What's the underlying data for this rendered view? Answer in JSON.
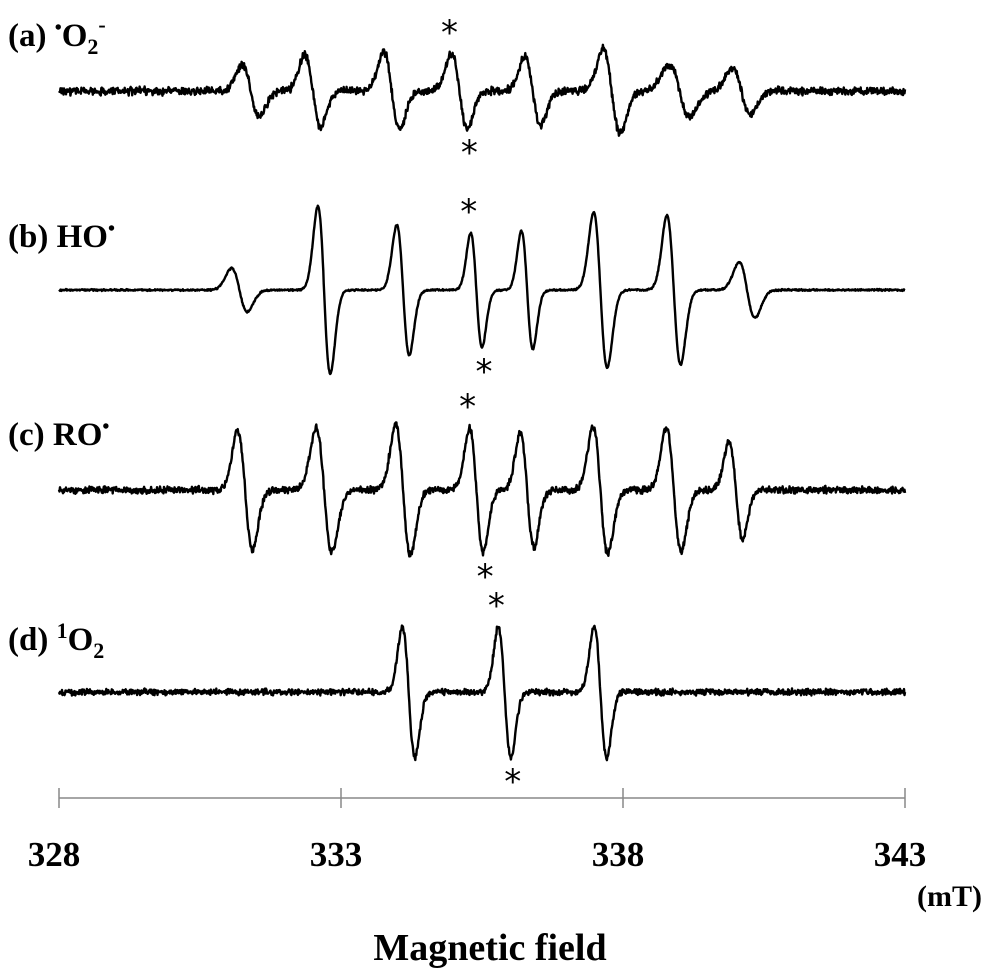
{
  "chart_data": {
    "type": "line",
    "xlabel": "Magnetic field",
    "xunit": "(mT)",
    "xlim": [
      328,
      343
    ],
    "xticks": [
      328,
      333,
      338,
      343
    ],
    "xtick_labels": [
      "328",
      "333",
      "338",
      "343"
    ],
    "grid": false,
    "peak_marker": "*",
    "series": [
      {
        "name": "(a) •O2−",
        "label_parts": {
          "prefix": "(a) ",
          "dot": "•",
          "main": "O",
          "sub": "2",
          "sup": "-"
        },
        "lines": [
          {
            "center": 331.4,
            "amp": 0.42,
            "width": 0.15
          },
          {
            "center": 332.5,
            "amp": 0.58,
            "width": 0.14
          },
          {
            "center": 333.9,
            "amp": 0.62,
            "width": 0.14
          },
          {
            "center": 335.1,
            "amp": 0.6,
            "width": 0.14
          },
          {
            "center": 336.4,
            "amp": 0.55,
            "width": 0.14
          },
          {
            "center": 337.8,
            "amp": 0.68,
            "width": 0.15
          },
          {
            "center": 339.0,
            "amp": 0.42,
            "width": 0.18
          },
          {
            "center": 340.1,
            "amp": 0.38,
            "width": 0.16
          }
        ],
        "noise": 0.09,
        "marked_line": 3
      },
      {
        "name": "(b) HO•",
        "label_parts": {
          "prefix": "(b) ",
          "main": "HO",
          "dot": "•"
        },
        "lines": [
          {
            "center": 331.2,
            "amp": 0.35,
            "width": 0.14
          },
          {
            "center": 332.7,
            "amp": 1.35,
            "width": 0.11
          },
          {
            "center": 334.1,
            "amp": 1.05,
            "width": 0.11
          },
          {
            "center": 335.4,
            "amp": 0.92,
            "width": 0.1
          },
          {
            "center": 336.3,
            "amp": 0.95,
            "width": 0.1
          },
          {
            "center": 337.6,
            "amp": 1.25,
            "width": 0.12
          },
          {
            "center": 338.9,
            "amp": 1.2,
            "width": 0.12
          },
          {
            "center": 340.2,
            "amp": 0.45,
            "width": 0.14
          }
        ],
        "noise": 0.02,
        "marked_line": 3
      },
      {
        "name": "(c) RO•",
        "label_parts": {
          "prefix": "(c) ",
          "main": "RO",
          "dot": "•"
        },
        "lines": [
          {
            "center": 331.3,
            "amp": 0.95,
            "width": 0.13
          },
          {
            "center": 332.7,
            "amp": 1.0,
            "width": 0.14
          },
          {
            "center": 334.1,
            "amp": 1.05,
            "width": 0.13
          },
          {
            "center": 335.4,
            "amp": 1.0,
            "width": 0.12
          },
          {
            "center": 336.3,
            "amp": 0.92,
            "width": 0.12
          },
          {
            "center": 337.6,
            "amp": 1.02,
            "width": 0.13
          },
          {
            "center": 338.9,
            "amp": 1.0,
            "width": 0.13
          },
          {
            "center": 340.0,
            "amp": 0.78,
            "width": 0.12
          }
        ],
        "noise": 0.08,
        "marked_line": 3
      },
      {
        "name": "(d) 1O2",
        "label_parts": {
          "prefix": "(d) ",
          "sup": "1",
          "main": "O",
          "sub": "2"
        },
        "lines": [
          {
            "center": 334.2,
            "amp": 1.05,
            "width": 0.11
          },
          {
            "center": 335.9,
            "amp": 1.05,
            "width": 0.11
          },
          {
            "center": 337.6,
            "amp": 1.05,
            "width": 0.11
          }
        ],
        "noise": 0.07,
        "marked_line": 1
      }
    ]
  }
}
